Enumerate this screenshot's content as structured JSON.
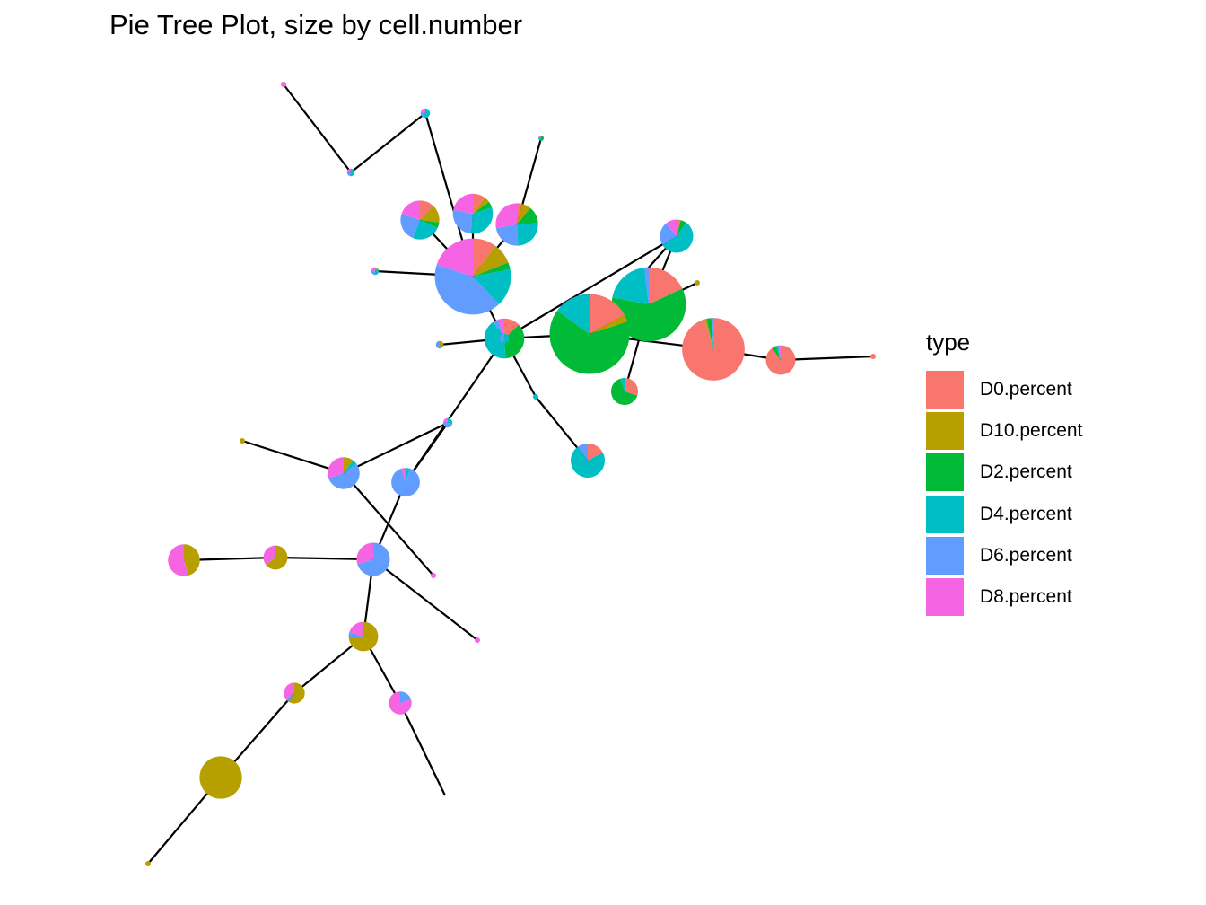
{
  "chart_data": {
    "type": "pie",
    "title": "Pie Tree Plot, size by cell.number",
    "legend": {
      "title": "type",
      "placement": "right",
      "entries": [
        {
          "label": "D0.percent",
          "color": "#F8766D"
        },
        {
          "label": "D10.percent",
          "color": "#B79F00"
        },
        {
          "label": "D2.percent",
          "color": "#00BA38"
        },
        {
          "label": "D4.percent",
          "color": "#00BFC4"
        },
        {
          "label": "D6.percent",
          "color": "#619CFF"
        },
        {
          "label": "D8.percent",
          "color": "#F564E3"
        }
      ]
    },
    "nodes": [
      {
        "id": 1,
        "cell_number": 1,
        "composition": [
          0,
          0,
          0,
          0,
          0,
          1
        ]
      },
      {
        "id": 2,
        "cell_number": 2,
        "composition": [
          0,
          0,
          0,
          0.5,
          0.3,
          0.2
        ]
      },
      {
        "id": 3,
        "cell_number": 1,
        "composition": [
          0,
          0,
          0.5,
          0.3,
          0,
          0.2
        ]
      },
      {
        "id": 4,
        "cell_number": 3,
        "composition": [
          0,
          0,
          0,
          0.6,
          0.2,
          0.2
        ]
      },
      {
        "id": 5,
        "cell_number": 52,
        "composition": [
          0.12,
          0.15,
          0.05,
          0.24,
          0.24,
          0.2
        ]
      },
      {
        "id": 6,
        "cell_number": 55,
        "composition": [
          0.1,
          0.05,
          0.05,
          0.32,
          0.26,
          0.22
        ]
      },
      {
        "id": 7,
        "cell_number": 62,
        "composition": [
          0.04,
          0.07,
          0.13,
          0.25,
          0.23,
          0.28
        ]
      },
      {
        "id": 8,
        "cell_number": 200,
        "composition": [
          0.1,
          0.09,
          0.03,
          0.16,
          0.42,
          0.2
        ]
      },
      {
        "id": 9,
        "cell_number": 2,
        "composition": [
          0,
          0.15,
          0,
          0.35,
          0.3,
          0.2
        ]
      },
      {
        "id": 10,
        "cell_number": 55,
        "composition": [
          0.13,
          0,
          0.36,
          0.42,
          0.04,
          0.05
        ]
      },
      {
        "id": 11,
        "cell_number": 1,
        "composition": [
          0,
          1,
          0,
          0,
          0,
          0
        ]
      },
      {
        "id": 12,
        "cell_number": 2,
        "composition": [
          0,
          0.4,
          0,
          0,
          0.6,
          0
        ]
      },
      {
        "id": 13,
        "cell_number": 38,
        "composition": [
          0.04,
          0,
          0.06,
          0.56,
          0.23,
          0.11
        ]
      },
      {
        "id": 14,
        "cell_number": 190,
        "composition": [
          0.18,
          0,
          0.6,
          0.2,
          0.02,
          0
        ]
      },
      {
        "id": 15,
        "cell_number": 220,
        "composition": [
          0.17,
          0.03,
          0.65,
          0.15,
          0,
          0
        ]
      },
      {
        "id": 16,
        "cell_number": 135,
        "composition": [
          0.955,
          0.01,
          0.025,
          0.005,
          0.005,
          0
        ]
      },
      {
        "id": 17,
        "cell_number": 30,
        "composition": [
          0.9,
          0,
          0.05,
          0.02,
          0.01,
          0.02
        ]
      },
      {
        "id": 18,
        "cell_number": 1,
        "composition": [
          1,
          0,
          0,
          0,
          0,
          0
        ]
      },
      {
        "id": 19,
        "cell_number": 25,
        "composition": [
          0.3,
          0,
          0.65,
          0.05,
          0,
          0
        ]
      },
      {
        "id": 20,
        "cell_number": 1,
        "composition": [
          0,
          0,
          0,
          1,
          0,
          0
        ]
      },
      {
        "id": 21,
        "cell_number": 40,
        "composition": [
          0.17,
          0,
          0,
          0.73,
          0.1,
          0
        ]
      },
      {
        "id": 22,
        "cell_number": 3,
        "composition": [
          0,
          0,
          0,
          0.3,
          0.5,
          0.2
        ]
      },
      {
        "id": 23,
        "cell_number": 28,
        "composition": [
          0,
          0,
          0,
          0.05,
          0.9,
          0.05
        ]
      },
      {
        "id": 24,
        "cell_number": 35,
        "composition": [
          0,
          0.1,
          0,
          0.05,
          0.55,
          0.3
        ]
      },
      {
        "id": 25,
        "cell_number": 1,
        "composition": [
          0,
          1,
          0,
          0,
          0,
          0
        ]
      },
      {
        "id": 26,
        "cell_number": 1,
        "composition": [
          0,
          0,
          0,
          0,
          0,
          1
        ]
      },
      {
        "id": 27,
        "cell_number": 38,
        "composition": [
          0,
          0,
          0,
          0,
          0.7,
          0.3
        ]
      },
      {
        "id": 28,
        "cell_number": 1,
        "composition": [
          0,
          0,
          0,
          0,
          0,
          1
        ]
      },
      {
        "id": 29,
        "cell_number": 35,
        "composition": [
          0,
          0.45,
          0,
          0,
          0,
          0.55
        ]
      },
      {
        "id": 30,
        "cell_number": 20,
        "composition": [
          0,
          0.65,
          0,
          0,
          0,
          0.35
        ]
      },
      {
        "id": 31,
        "cell_number": 30,
        "composition": [
          0,
          0.75,
          0,
          0,
          0.05,
          0.2
        ]
      },
      {
        "id": 32,
        "cell_number": 15,
        "composition": [
          0,
          0.6,
          0,
          0,
          0.05,
          0.35
        ]
      },
      {
        "id": 33,
        "cell_number": 18,
        "composition": [
          0,
          0,
          0,
          0,
          0.2,
          0.8
        ]
      },
      {
        "id": 34,
        "cell_number": 62,
        "composition": [
          0,
          1,
          0,
          0,
          0,
          0
        ]
      },
      {
        "id": 35,
        "cell_number": 1,
        "composition": [
          0,
          1,
          0,
          0,
          0,
          0
        ]
      },
      {
        "id": 36,
        "cell_number": 3,
        "composition": [
          0,
          0,
          0,
          0.55,
          0.45,
          0
        ]
      }
    ],
    "edges": [
      [
        1,
        2
      ],
      [
        2,
        4
      ],
      [
        3,
        7
      ],
      [
        4,
        8
      ],
      [
        5,
        8
      ],
      [
        6,
        8
      ],
      [
        7,
        8
      ],
      [
        9,
        8
      ],
      [
        8,
        10
      ],
      [
        10,
        12
      ],
      [
        10,
        13
      ],
      [
        13,
        14
      ],
      [
        14,
        15
      ],
      [
        14,
        19
      ],
      [
        15,
        10
      ],
      [
        15,
        13
      ],
      [
        15,
        16
      ],
      [
        15,
        11
      ],
      [
        16,
        17
      ],
      [
        17,
        18
      ],
      [
        10,
        20
      ],
      [
        20,
        21
      ],
      [
        10,
        36
      ],
      [
        36,
        23
      ],
      [
        23,
        22
      ],
      [
        22,
        24
      ],
      [
        24,
        25
      ],
      [
        24,
        26
      ],
      [
        23,
        27
      ],
      [
        27,
        28
      ],
      [
        27,
        30
      ],
      [
        30,
        29
      ],
      [
        27,
        31
      ],
      [
        31,
        32
      ],
      [
        32,
        34
      ],
      [
        34,
        35
      ],
      [
        31,
        33
      ]
    ]
  }
}
